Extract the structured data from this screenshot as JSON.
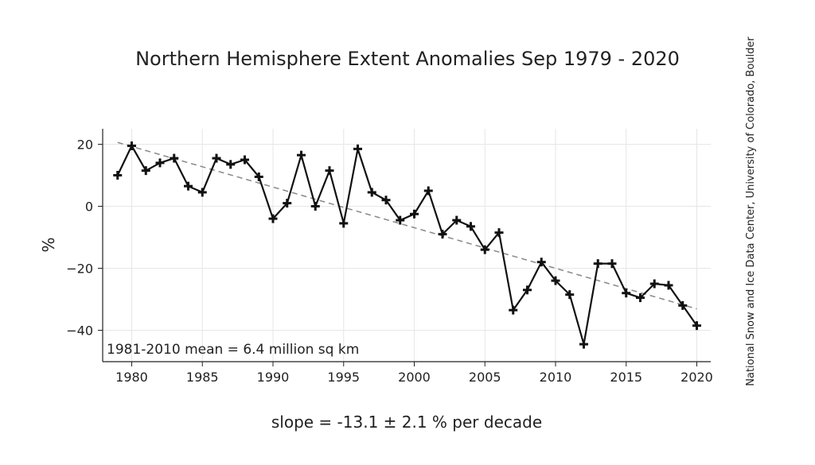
{
  "chart_data": {
    "type": "line",
    "title": "Northern Hemisphere Extent Anomalies Sep 1979 - 2020",
    "ylabel": "%",
    "xlabel": "slope = -13.1 ± 2.1 % per decade",
    "annotation": "1981-2010 mean = 6.4 million sq km",
    "source": "National Snow and Ice Data Center, University of Colorado, Boulder",
    "xlim": [
      1978.2,
      2021.0
    ],
    "ylim": [
      -50,
      25
    ],
    "x_ticks": [
      1980,
      1985,
      1990,
      1995,
      2000,
      2005,
      2010,
      2015,
      2020
    ],
    "y_ticks": [
      20,
      0,
      -20,
      -40
    ],
    "y_tick_labels": [
      "20",
      "0",
      "−20",
      "−40"
    ],
    "grid": true,
    "series": [
      {
        "x": [
          1979,
          1980,
          1981,
          1982,
          1983,
          1984,
          1985,
          1986,
          1987,
          1988,
          1989,
          1990,
          1991,
          1992,
          1993,
          1994,
          1995,
          1996,
          1997,
          1998,
          1999,
          2000,
          2001,
          2002,
          2003,
          2004,
          2005,
          2006,
          2007,
          2008,
          2009,
          2010,
          2011,
          2012,
          2013,
          2014,
          2015,
          2016,
          2017,
          2018,
          2019,
          2020
        ],
        "values": [
          10,
          19.5,
          11.5,
          14,
          15.5,
          6.5,
          4.5,
          15.5,
          13.5,
          15,
          9.5,
          -4,
          1,
          16.5,
          0,
          11.5,
          -5.5,
          18.5,
          4.5,
          2,
          -4.5,
          -2.5,
          5,
          -9,
          -4.5,
          -6.5,
          -14,
          -8.5,
          -33.5,
          -27,
          -18,
          -24,
          -28.5,
          -44.5,
          -18.5,
          -18.5,
          -28,
          -29.5,
          -25,
          -25.5,
          -32,
          -38.5
        ],
        "marker": "plus",
        "color": "#111111"
      }
    ],
    "trend": {
      "x": [
        1979,
        2020
      ],
      "values": [
        20.6,
        -33.1
      ],
      "style": "dashed",
      "color": "#888888"
    }
  }
}
